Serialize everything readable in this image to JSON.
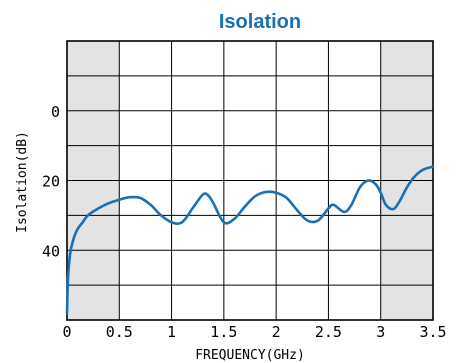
{
  "chart_data": {
    "type": "line",
    "title": "Isolation",
    "xlabel": "FREQUENCY(GHz)",
    "ylabel": "Isolation(dB)",
    "xlim": [
      0,
      3.5
    ],
    "ylim": [
      60,
      -20
    ],
    "y_inverted": true,
    "grid": true,
    "x_ticks": [
      0,
      0.5,
      1,
      1.5,
      2,
      2.5,
      3,
      3.5
    ],
    "x_tick_labels": [
      "0",
      "0.5",
      "1",
      "1.5",
      "2",
      "2.5",
      "3",
      "3.5"
    ],
    "y_tick_labels": [
      {
        "value": 0,
        "label": "0"
      },
      {
        "value": 20,
        "label": "20"
      },
      {
        "value": 40,
        "label": "40"
      }
    ],
    "shaded_x_ranges": [
      [
        0,
        0.5
      ],
      [
        3,
        3.5
      ]
    ],
    "colors": {
      "title": "#1b6fb5",
      "line": "#1b6fb5",
      "shade": "#e3e3e3",
      "grid": "#000000"
    },
    "series": [
      {
        "x": [
          0.0,
          0.01,
          0.03,
          0.06,
          0.1,
          0.15,
          0.2,
          0.3,
          0.4,
          0.5,
          0.6,
          0.7,
          0.8,
          0.9,
          1.0,
          1.1,
          1.2,
          1.3,
          1.35,
          1.4,
          1.5,
          1.6,
          1.7,
          1.8,
          1.9,
          2.0,
          2.1,
          2.2,
          2.3,
          2.4,
          2.5,
          2.55,
          2.65,
          2.72,
          2.8,
          2.88,
          2.95,
          3.0,
          3.05,
          3.12,
          3.18,
          3.25,
          3.32,
          3.4,
          3.5
        ],
        "y": [
          58,
          48,
          41,
          37,
          34,
          32,
          30,
          28,
          26.5,
          25.5,
          24.8,
          25,
          27,
          30,
          32,
          32,
          28,
          24,
          24.3,
          26.5,
          32,
          31,
          27.5,
          24.5,
          23.3,
          23.5,
          25,
          28.5,
          31.5,
          31.5,
          28,
          27,
          29,
          27,
          22,
          20,
          21,
          23.5,
          27,
          28.2,
          26,
          22,
          19,
          17,
          16
        ]
      }
    ]
  }
}
